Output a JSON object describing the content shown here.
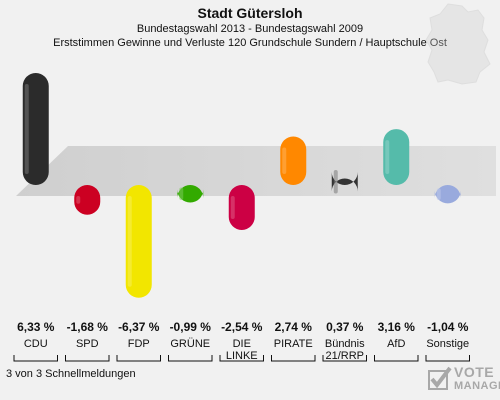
{
  "header": {
    "title": "Stadt Gütersloh",
    "subtitle": "Bundestagswahl 2013 - Bundestagswahl 2009",
    "subtitle2": "Erststimmen Gewinne und Verluste 120 Grundschule Sundern / Hauptschule Ost"
  },
  "footer": {
    "text": "3 von 3 Schnellmeldungen"
  },
  "logo": {
    "line1": "VOTE",
    "line2": "MANAGER"
  },
  "chart_data": {
    "type": "bar",
    "categories": [
      "CDU",
      "SPD",
      "FDP",
      "GRÜNE",
      "DIE LINKE",
      "PIRATE",
      "Bündnis 21/RRP",
      "AfD",
      "Sonstige"
    ],
    "category_lines": [
      [
        "CDU"
      ],
      [
        "SPD"
      ],
      [
        "FDP"
      ],
      [
        "GRÜNE"
      ],
      [
        "DIE",
        "LINKE"
      ],
      [
        "PIRATE"
      ],
      [
        "Bündnis",
        "21/RRP"
      ],
      [
        "AfD"
      ],
      [
        "Sonstige"
      ]
    ],
    "values": [
      6.33,
      -1.68,
      -6.37,
      -0.99,
      -2.54,
      2.74,
      0.37,
      3.16,
      -1.04
    ],
    "value_labels": [
      "6,33 %",
      "-1,68 %",
      "-6,37 %",
      "-0,99 %",
      "-2,54 %",
      "2,74 %",
      "0,37 %",
      "3,16 %",
      "-1,04 %"
    ],
    "colors": [
      "#2b2b2b",
      "#cc0022",
      "#f2e600",
      "#33aa00",
      "#cc0044",
      "#ff8800",
      "#333333",
      "#55bbaa",
      "#99aadd"
    ]
  }
}
